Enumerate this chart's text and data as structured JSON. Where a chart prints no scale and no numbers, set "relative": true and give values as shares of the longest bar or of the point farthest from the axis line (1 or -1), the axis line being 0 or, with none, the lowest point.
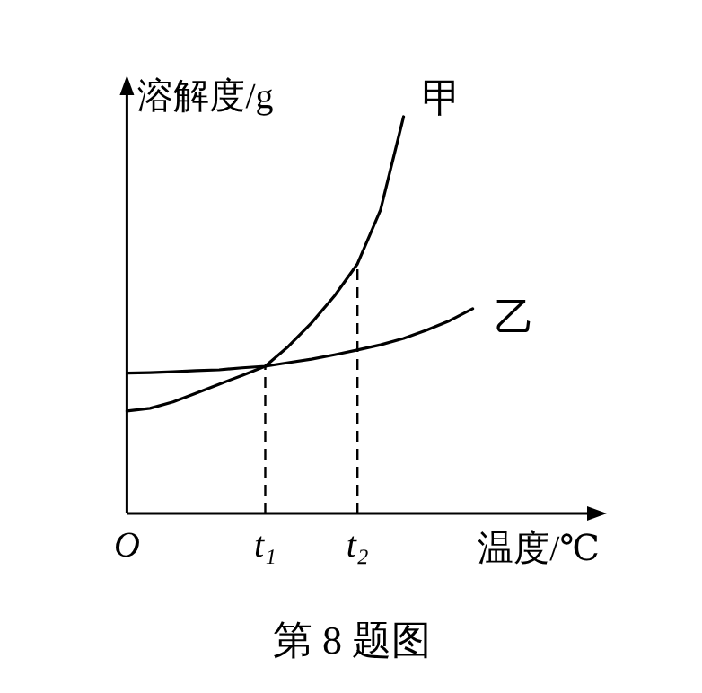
{
  "chart_data": {
    "type": "line",
    "relative": true,
    "xlabel": "温度/℃",
    "ylabel": "溶解度/g",
    "annotations": [
      "第 8 题图"
    ],
    "categories": [
      "O",
      null,
      null,
      null,
      null,
      null,
      "t₁",
      null,
      null,
      null,
      "t₂",
      null,
      null,
      null,
      null,
      null
    ],
    "line_style": "solid",
    "series": [
      {
        "name": "甲",
        "color": "#000000",
        "values": [
          0.258,
          0.265,
          0.281,
          0.303,
          0.326,
          0.348,
          0.371,
          0.421,
          0.48,
          0.548,
          0.629,
          0.765,
          1,
          null,
          null,
          null
        ]
      },
      {
        "name": "乙",
        "color": "#000000",
        "values": [
          0.354,
          0.355,
          0.357,
          0.36,
          0.362,
          0.367,
          0.371,
          0.38,
          0.389,
          0.4,
          0.412,
          0.425,
          0.441,
          0.462,
          0.486,
          0.516
        ]
      }
    ],
    "ref_lines": [
      {
        "axis": "x",
        "value": "t₁",
        "line_style": "dashed"
      },
      {
        "axis": "x",
        "value": "t₂",
        "line_style": "dashed"
      }
    ]
  }
}
